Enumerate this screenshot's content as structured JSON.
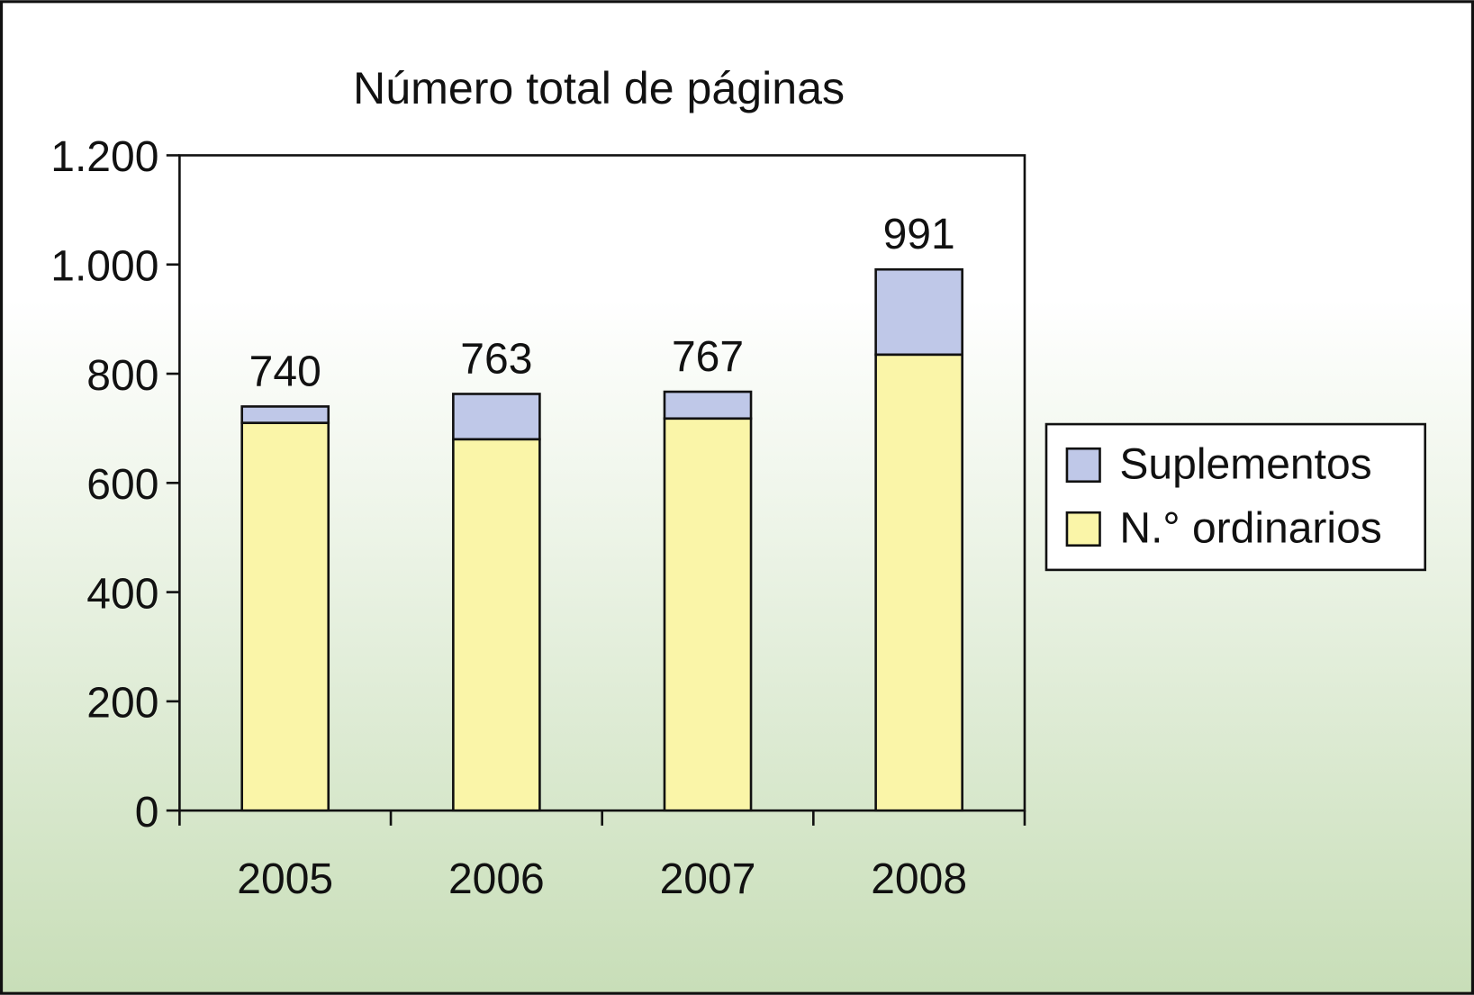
{
  "chart_data": {
    "type": "stacked_bar",
    "title": "Número total de páginas",
    "categories": [
      "2005",
      "2006",
      "2007",
      "2008"
    ],
    "series": [
      {
        "name": "N.° ordinarios",
        "color": "#faf5a8",
        "values": [
          710,
          680,
          718,
          835
        ]
      },
      {
        "name": "Suplementos",
        "color": "#bfc8e8",
        "values": [
          30,
          83,
          49,
          156
        ]
      }
    ],
    "totals": [
      740,
      763,
      767,
      991
    ],
    "ylim": [
      0,
      1200
    ],
    "yticks": [
      0,
      200,
      400,
      600,
      800,
      {
        "value": 1000,
        "label": "1.000"
      },
      {
        "value": 1200,
        "label": "1.200"
      }
    ],
    "legend": "right"
  }
}
